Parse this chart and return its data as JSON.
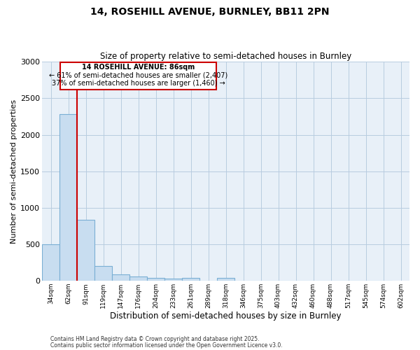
{
  "title1": "14, ROSEHILL AVENUE, BURNLEY, BB11 2PN",
  "title2": "Size of property relative to semi-detached houses in Burnley",
  "xlabel": "Distribution of semi-detached houses by size in Burnley",
  "ylabel": "Number of semi-detached properties",
  "bin_labels": [
    "34sqm",
    "62sqm",
    "91sqm",
    "119sqm",
    "147sqm",
    "176sqm",
    "204sqm",
    "233sqm",
    "261sqm",
    "289sqm",
    "318sqm",
    "346sqm",
    "375sqm",
    "403sqm",
    "432sqm",
    "460sqm",
    "488sqm",
    "517sqm",
    "545sqm",
    "574sqm",
    "602sqm"
  ],
  "values": [
    500,
    2280,
    840,
    200,
    90,
    55,
    40,
    35,
    40,
    0,
    40,
    0,
    0,
    0,
    0,
    0,
    0,
    0,
    0,
    0
  ],
  "bar_color": "#c8ddf0",
  "bar_edge_color": "#7aafd4",
  "property_bin_index": 2,
  "annotation_title": "14 ROSEHILL AVENUE: 86sqm",
  "annotation_line1": "← 61% of semi-detached houses are smaller (2,407)",
  "annotation_line2": "37% of semi-detached houses are larger (1,460) →",
  "redline_color": "#cc0000",
  "annotation_box_color": "#cc0000",
  "footnote1": "Contains HM Land Registry data © Crown copyright and database right 2025.",
  "footnote2": "Contains public sector information licensed under the Open Government Licence v3.0.",
  "fig_background": "#ffffff",
  "plot_background": "#e8f0f8",
  "grid_color": "#b8cce0",
  "ylim": [
    0,
    3000
  ],
  "yticks": [
    0,
    500,
    1000,
    1500,
    2000,
    2500,
    3000
  ]
}
